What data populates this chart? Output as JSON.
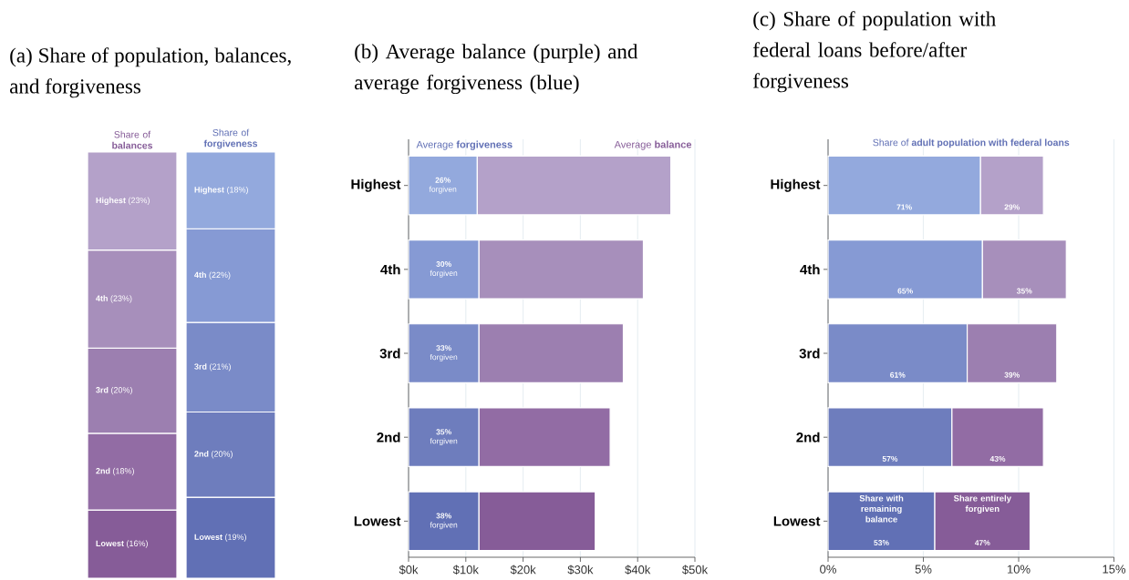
{
  "chart_data": [
    {
      "type": "bar",
      "stacked": true,
      "title": "(a) Share of population, balances, and forgiveness",
      "categories": [
        "Share of **balances**",
        "Share of **forgiveness**"
      ],
      "series": [
        {
          "name": "Lowest",
          "colors": [
            "#865c98",
            "#6170b5"
          ],
          "values": [
            16,
            19
          ],
          "value_labels": [
            "(16%)",
            "(19%)"
          ]
        },
        {
          "name": "2nd",
          "colors": [
            "#926ca4",
            "#6e7dbd"
          ],
          "values": [
            18,
            20
          ],
          "value_labels": [
            "(18%)",
            "(20%)"
          ]
        },
        {
          "name": "3rd",
          "colors": [
            "#9c7fb0",
            "#7a8bc8"
          ],
          "values": [
            20,
            21
          ],
          "value_labels": [
            "(20%)",
            "(21%)"
          ]
        },
        {
          "name": "4th",
          "colors": [
            "#a78fbb",
            "#869ad4"
          ],
          "values": [
            23,
            22
          ],
          "value_labels": [
            "(23%)",
            "(22%)"
          ]
        },
        {
          "name": "Highest",
          "colors": [
            "#b4a1c9",
            "#93a9dd"
          ],
          "values": [
            23,
            18
          ],
          "value_labels": [
            "(23%)",
            "(18%)"
          ]
        }
      ]
    },
    {
      "type": "bar",
      "stacked": true,
      "orientation": "horizontal",
      "title": "(b) Average balance (purple) and average forgiveness (blue)",
      "categories": [
        "Highest",
        "4th",
        "3rd",
        "2nd",
        "Lowest"
      ],
      "xlim": [
        0,
        50
      ],
      "xticks": [
        {
          "value": 0,
          "label": "$0k"
        },
        {
          "value": 10,
          "label": "$10k"
        },
        {
          "value": 20,
          "label": "$20k"
        },
        {
          "value": 30,
          "label": "$30k"
        },
        {
          "value": 40,
          "label": "$40k"
        },
        {
          "value": 50,
          "label": "$50k"
        }
      ],
      "grid": "x",
      "annotations": [
        "**26%** forgiven",
        "**30%** forgiven",
        "**33%** forgiven",
        "**35%** forgiven",
        "**38%** forgiven"
      ],
      "series": [
        {
          "name": "Average **forgiveness**",
          "colors": [
            "#93a9dd",
            "#869ad4",
            "#7a8bc8",
            "#6e7dbd",
            "#6170b5"
          ],
          "values": [
            12.0,
            12.3,
            12.3,
            12.3,
            12.3
          ]
        },
        {
          "name": "Average **balance**",
          "colors": [
            "#b4a1c9",
            "#a78fbb",
            "#9c7fb0",
            "#926ca4",
            "#865c98"
          ],
          "values": [
            33.8,
            28.7,
            25.2,
            22.9,
            20.3
          ]
        }
      ]
    },
    {
      "type": "bar",
      "stacked": true,
      "orientation": "horizontal",
      "title": "(c) Share of population with federal loans before/after forgiveness",
      "categories": [
        "Highest",
        "4th",
        "3rd",
        "2nd",
        "Lowest"
      ],
      "xlim": [
        0,
        15
      ],
      "xticks": [
        {
          "value": 0,
          "label": "0%"
        },
        {
          "value": 5,
          "label": "5%"
        },
        {
          "value": 10,
          "label": "10%"
        },
        {
          "value": 15,
          "label": "15%"
        }
      ],
      "grid": "x",
      "annotations": [
        "Share of **adult population with federal loans**",
        "71%",
        "65%",
        "61%",
        "57%",
        "53%",
        "29%",
        "35%",
        "39%",
        "43%",
        "47%"
      ],
      "series": [
        {
          "name": "Share with remaining balance",
          "colors": [
            "#93a9dd",
            "#869ad4",
            "#7a8bc8",
            "#6e7dbd",
            "#6170b5"
          ],
          "values": [
            8.0,
            8.1,
            7.3,
            6.5,
            5.6
          ]
        },
        {
          "name": "Share entirely forgiven",
          "colors": [
            "#b4a1c9",
            "#a78fbb",
            "#9c7fb0",
            "#926ca4",
            "#865c98"
          ],
          "values": [
            3.3,
            4.4,
            4.7,
            4.8,
            5.0
          ]
        }
      ]
    }
  ]
}
